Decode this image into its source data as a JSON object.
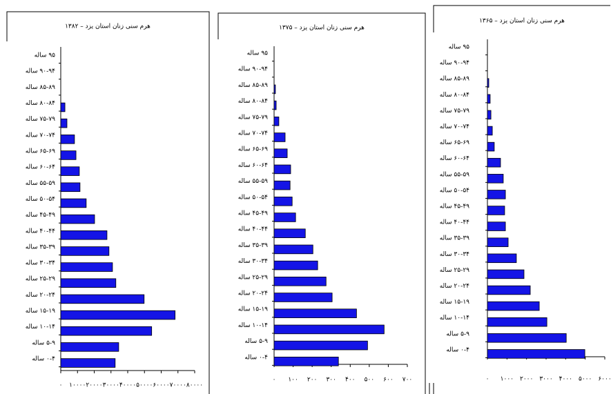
{
  "chart_data": [
    {
      "type": "bar",
      "orientation": "horizontal",
      "title": "هرم سنی زنان استان یزد – ۱۳۸۲",
      "color": "#1414e6",
      "categories": [
        "۹۵ ساله",
        "۹۰-۹۴ ساله",
        "۸۵-۸۹ ساله",
        "۸۰-۸۴ ساله",
        "۷۵-۷۹ ساله",
        "۷۰-۷۴ ساله",
        "۶۵-۶۹ ساله",
        "۶۰-۶۴ ساله",
        "۵۵-۵۹ ساله",
        "۵۰-۵۴ ساله",
        "۴۵-۴۹ ساله",
        "۴۰-۴۴ ساله",
        "۳۵-۳۹ ساله",
        "۳۰-۳۴ ساله",
        "۲۵-۲۹ ساله",
        "۲۰-۲۴ ساله",
        "۱۵-۱۹ ساله",
        "۱۰-۱۴ ساله",
        "۵-۹ ساله",
        "۰-۴ ساله"
      ],
      "values": [
        0,
        0,
        0,
        2500,
        3700,
        8200,
        9100,
        11100,
        11500,
        15200,
        20200,
        27600,
        28800,
        30900,
        32900,
        49800,
        68300,
        54300,
        34600,
        32500
      ],
      "xlim": [
        0,
        80000
      ],
      "xticks": [
        {
          "value": 0,
          "label": "۰"
        },
        {
          "value": 10000,
          "label": "۱۰۰۰۰"
        },
        {
          "value": 20000,
          "label": "۲۰۰۰۰"
        },
        {
          "value": 30000,
          "label": "۳۰۰۰۰"
        },
        {
          "value": 40000,
          "label": "۴۰۰۰۰"
        },
        {
          "value": 50000,
          "label": "۵۰۰۰۰"
        },
        {
          "value": 60000,
          "label": "۶۰۰۰۰"
        },
        {
          "value": 70000,
          "label": "۷۰۰۰۰"
        },
        {
          "value": 80000,
          "label": "۸۰۰۰۰"
        }
      ]
    },
    {
      "type": "bar",
      "orientation": "horizontal",
      "title": "هرم سنی زنان استان یزد – ۱۳۷۵",
      "color": "#1414e6",
      "categories": [
        "۹۵ ساله",
        "۹۰-۹۴ ساله",
        "۸۵-۸۹ ساله",
        "۸۰-۸۴ ساله",
        "۷۵-۷۹ ساله",
        "۷۰-۷۴ ساله",
        "۶۵-۶۹ ساله",
        "۶۰-۶۴ ساله",
        "۵۵-۵۹ ساله",
        "۵۰-۵۴ ساله",
        "۴۵-۴۹ ساله",
        "۴۰-۴۴ ساله",
        "۳۵-۳۹ ساله",
        "۳۰-۳۴ ساله",
        "۲۵-۲۹ ساله",
        "۲۰-۲۴ ساله",
        "۱۵-۱۹ ساله",
        "۱۰-۱۴ ساله",
        "۵-۹ ساله",
        "۰-۴ ساله"
      ],
      "values": [
        0,
        0,
        7,
        11,
        25,
        58,
        69,
        87,
        84,
        95,
        113,
        164,
        204,
        229,
        273,
        305,
        433,
        578,
        491,
        338
      ],
      "xlim": [
        0,
        700
      ],
      "xticks": [
        {
          "value": 0,
          "label": "۰"
        },
        {
          "value": 100,
          "label": "۱۰۰"
        },
        {
          "value": 200,
          "label": "۲۰۰"
        },
        {
          "value": 300,
          "label": "۳۰۰"
        },
        {
          "value": 400,
          "label": "۴۰۰"
        },
        {
          "value": 500,
          "label": "۵۰۰"
        },
        {
          "value": 600,
          "label": "۶۰۰"
        },
        {
          "value": 700,
          "label": "۷۰۰"
        }
      ]
    },
    {
      "type": "bar",
      "orientation": "horizontal",
      "title": "هرم سنی زنان استان یزد – ۱۳۶۵",
      "color": "#1414e6",
      "categories": [
        "۹۵ ساله",
        "۹۰-۹۴ ساله",
        "۸۵-۸۹ ساله",
        "۸۰-۸۴ ساله",
        "۷۵-۷۹ ساله",
        "۷۰-۷۴ ساله",
        "۶۵-۶۹ ساله",
        "۶۰-۶۴ ساله",
        "۵۵-۵۹ ساله",
        "۵۰-۵۴ ساله",
        "۴۵-۴۹ ساله",
        "۴۰-۴۴ ساله",
        "۳۵-۳۹ ساله",
        "۳۰-۳۴ ساله",
        "۲۵-۲۹ ساله",
        "۲۰-۲۴ ساله",
        "۱۵-۱۹ ساله",
        "۱۰-۱۴ ساله",
        "۵-۹ ساله",
        "۰-۴ ساله"
      ],
      "values": [
        0,
        0,
        70,
        140,
        180,
        250,
        350,
        670,
        810,
        920,
        880,
        920,
        1060,
        1480,
        1870,
        2190,
        2650,
        3040,
        4030,
        4980
      ],
      "xlim": [
        0,
        6000
      ],
      "xticks": [
        {
          "value": 0,
          "label": "۰"
        },
        {
          "value": 1000,
          "label": "۱۰۰۰"
        },
        {
          "value": 2000,
          "label": "۲۰۰۰"
        },
        {
          "value": 3000,
          "label": "۳۰۰۰"
        },
        {
          "value": 4000,
          "label": "۴۰۰۰"
        },
        {
          "value": 5000,
          "label": "۵۰۰۰"
        },
        {
          "value": 6000,
          "label": "۶۰۰۰"
        }
      ]
    }
  ]
}
